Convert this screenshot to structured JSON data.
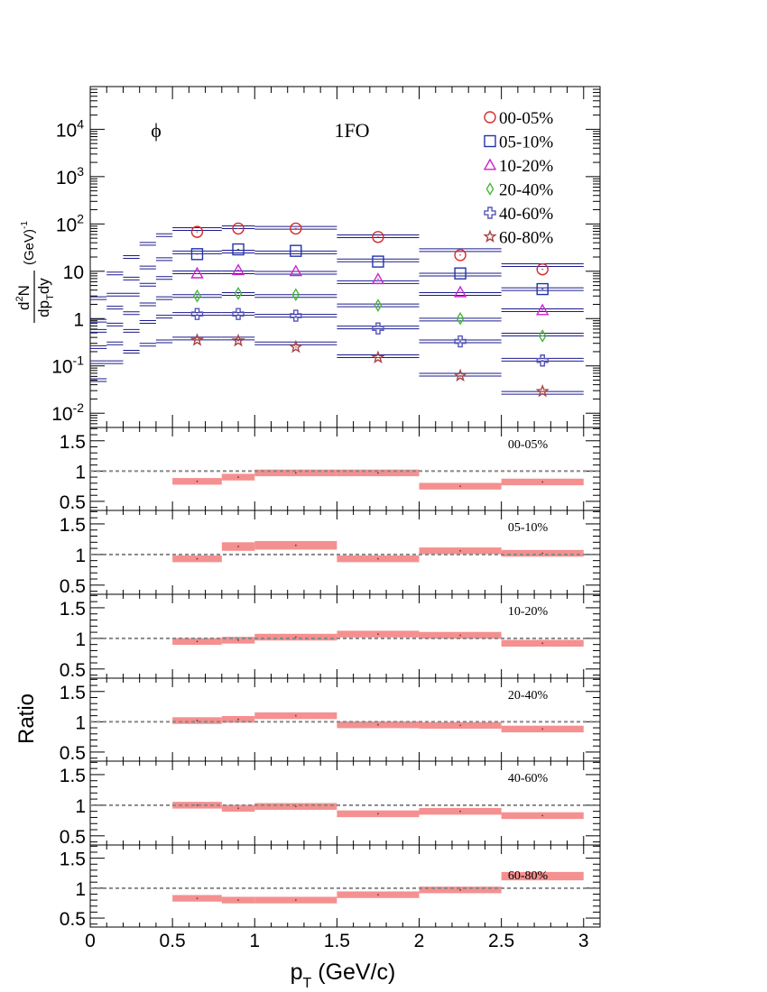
{
  "chart_data": {
    "type": "scatter",
    "particle_label": "ϕ",
    "model_label": "1FO",
    "xlabel": "p",
    "xlabel_sub": "T",
    "xlabel_unit": " (GeV/c)",
    "ylabel_ratio": "Ratio",
    "ylabel_top": {
      "num_d": "d",
      "num_sup": "2",
      "num_N": "N",
      "den_dp": "dp",
      "den_sub": "T",
      "den_dy": "dy",
      "unit": "(GeV)",
      "unit_sup": "-1"
    },
    "x_range": [
      0,
      3.1
    ],
    "x_ticks": [
      "0",
      "0.5",
      "1",
      "1.5",
      "2",
      "2.5",
      "3"
    ],
    "y_top": {
      "scale": "log",
      "range": [
        0.005,
        80000
      ],
      "tick_labels": [
        {
          "base": "10",
          "exp": "-2"
        },
        {
          "base": "10",
          "exp": "-1"
        },
        {
          "base": "1",
          "exp": ""
        },
        {
          "base": "10",
          "exp": ""
        },
        {
          "base": "10",
          "exp": "2"
        },
        {
          "base": "10",
          "exp": "3"
        },
        {
          "base": "10",
          "exp": "4"
        }
      ]
    },
    "y_ratio": {
      "range": [
        0.35,
        1.72
      ],
      "tick_labels": [
        "0.5",
        "1",
        "1.5"
      ],
      "reference_line": 1
    },
    "legend_position": "top-right",
    "data_bins": [
      [
        0.5,
        0.8
      ],
      [
        0.8,
        1.0
      ],
      [
        1.0,
        1.5
      ],
      [
        1.5,
        2.0
      ],
      [
        2.0,
        2.5
      ],
      [
        2.5,
        3.0
      ]
    ],
    "data_x": [
      0.65,
      0.9,
      1.25,
      1.75,
      2.25,
      2.75
    ],
    "model_bins": [
      [
        0.0,
        0.1
      ],
      [
        0.1,
        0.2
      ],
      [
        0.2,
        0.3
      ],
      [
        0.3,
        0.4
      ],
      [
        0.4,
        0.5
      ],
      [
        0.5,
        0.8
      ],
      [
        0.8,
        1.0
      ],
      [
        1.0,
        1.5
      ],
      [
        1.5,
        2.0
      ],
      [
        2.0,
        2.5
      ],
      [
        2.5,
        3.0
      ]
    ],
    "series": [
      {
        "name": "00-05%",
        "marker": "circle",
        "color": "#d42a2a",
        "data": [
          68,
          80,
          80,
          53,
          22,
          11
        ],
        "model": [
          2.7,
          9,
          20,
          38,
          58,
          78,
          85,
          83,
          55,
          28,
          13.5
        ],
        "ratio": [
          0.83,
          0.9,
          0.97,
          0.97,
          0.75,
          0.82
        ]
      },
      {
        "name": "05-10%",
        "marker": "square",
        "color": "#2233aa",
        "data": [
          23,
          29,
          27,
          16,
          9,
          4.2
        ],
        "model": [
          0.9,
          3.2,
          7,
          12,
          18,
          25,
          26,
          25,
          17,
          8.5,
          4.2
        ],
        "ratio": [
          0.93,
          1.13,
          1.15,
          0.93,
          1.06,
          1.02
        ]
      },
      {
        "name": "10-20%",
        "marker": "triangle",
        "color": "#cc22cc",
        "data": [
          9,
          10.5,
          10,
          6.8,
          3.6,
          1.5
        ],
        "model": [
          0.55,
          1.7,
          3.2,
          5.2,
          7.2,
          9.5,
          9.5,
          9.3,
          5.9,
          3.3,
          1.5
        ],
        "ratio": [
          0.95,
          0.97,
          1.02,
          1.07,
          1.05,
          0.92
        ]
      },
      {
        "name": "20-40%",
        "marker": "diamond",
        "color": "#4ab83a",
        "data": [
          3.0,
          3.4,
          3.2,
          1.9,
          1.0,
          0.43
        ],
        "model": [
          0.25,
          0.75,
          1.3,
          2.0,
          2.7,
          3.0,
          3.3,
          3.0,
          1.9,
          0.95,
          0.46
        ],
        "ratio": [
          1.02,
          1.04,
          1.1,
          0.95,
          0.94,
          0.88
        ]
      },
      {
        "name": "40-60%",
        "marker": "cross",
        "color": "#5555bb",
        "data": [
          1.25,
          1.25,
          1.15,
          0.62,
          0.33,
          0.13
        ],
        "model": [
          0.12,
          0.3,
          0.55,
          0.85,
          1.1,
          1.25,
          1.25,
          1.15,
          0.65,
          0.33,
          0.135
        ],
        "ratio": [
          1.0,
          0.95,
          0.98,
          0.86,
          0.9,
          0.83
        ]
      },
      {
        "name": "60-80%",
        "marker": "star",
        "color": "#aa4444",
        "data": [
          0.35,
          0.34,
          0.25,
          0.15,
          0.062,
          0.029
        ],
        "model": [
          0.05,
          0.12,
          0.2,
          0.28,
          0.33,
          0.38,
          0.38,
          0.3,
          0.16,
          0.065,
          0.027
        ],
        "ratio": [
          0.83,
          0.8,
          0.8,
          0.89,
          0.97,
          1.2
        ]
      }
    ]
  }
}
